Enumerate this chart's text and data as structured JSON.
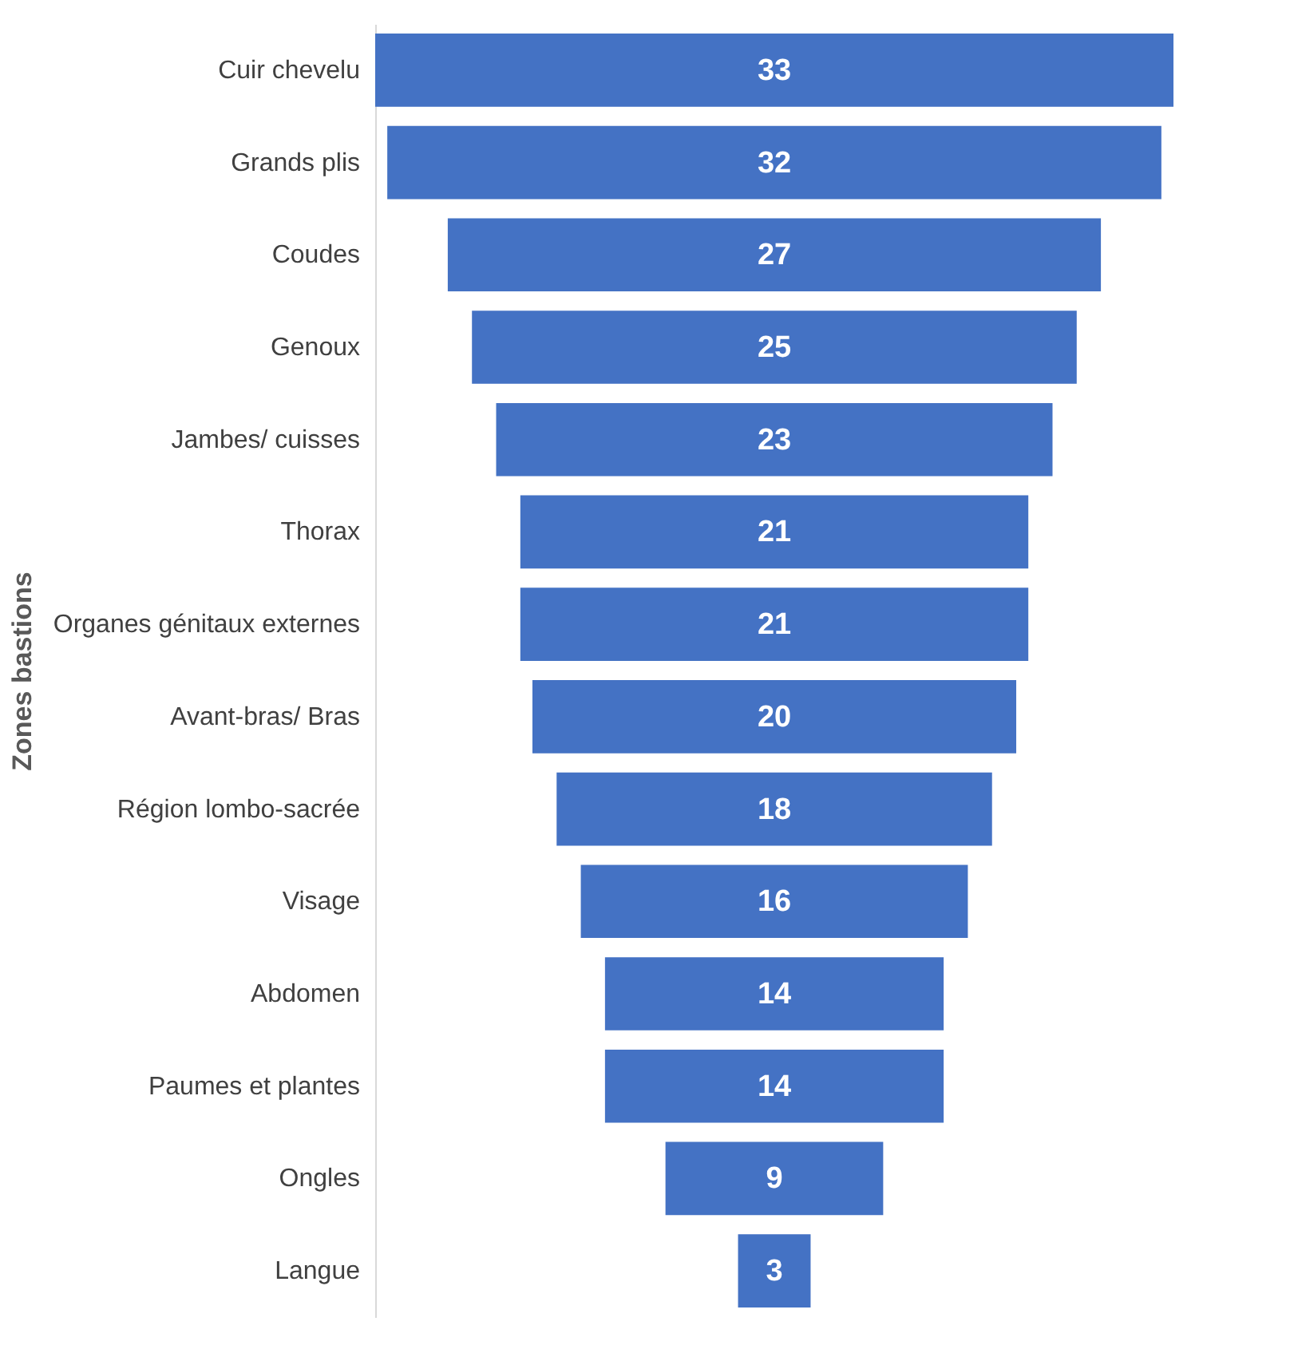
{
  "chart_data": {
    "type": "other",
    "ylabel": "Zones bastions",
    "categories": [
      "Cuir chevelu",
      "Grands plis",
      "Coudes",
      "Genoux",
      "Jambes/ cuisses",
      "Thorax",
      "Organes génitaux externes",
      "Avant-bras/ Bras",
      "Région lombo-sacrée",
      "Visage",
      "Abdomen",
      "Paumes et plantes",
      "Ongles",
      "Langue"
    ],
    "values": [
      33,
      32,
      27,
      25,
      23,
      21,
      21,
      20,
      18,
      16,
      14,
      14,
      9,
      3
    ],
    "color": "#4472c4",
    "data_labels": true
  }
}
